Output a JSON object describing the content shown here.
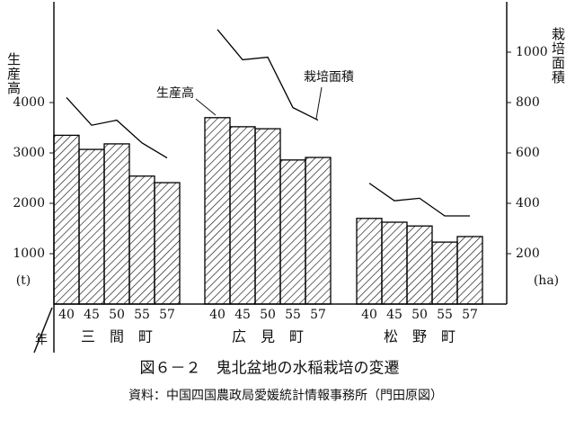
{
  "chart_data": {
    "type": "bar",
    "title": "図６－２　鬼北盆地の水稲栽培の変遷",
    "subtitle": "資料：中国四国農政局愛媛統計情報事務所（門田原図）",
    "ylabel": "生産高",
    "yunit": "(t)",
    "y2label": "栽培面積",
    "y2unit": "(ha)",
    "xlabel": "年",
    "ylim": [
      0,
      6000
    ],
    "yticks": [
      1000,
      2000,
      3000,
      4000
    ],
    "y2lim": [
      0,
      1200
    ],
    "y2ticks": [
      200,
      400,
      600,
      800,
      1000
    ],
    "series": [
      {
        "name": "生産高",
        "color": "#000000"
      },
      {
        "name": "栽培面積",
        "axis": "y2",
        "type": "line",
        "color": "#000000"
      }
    ],
    "groups": [
      {
        "name": "三　間　町",
        "categories": [
          "40",
          "45",
          "50",
          "55",
          "57"
        ],
        "series": [
          {
            "values": [
              3350,
              3070,
              3180,
              2540,
              2410
            ]
          },
          {
            "values": [
              820,
              710,
              730,
              640,
              580
            ]
          }
        ]
      },
      {
        "name": "広　見　町",
        "categories": [
          "40",
          "45",
          "50",
          "55",
          "57"
        ],
        "series": [
          {
            "values": [
              3700,
              3520,
              3480,
              2860,
              2910
            ]
          },
          {
            "values": [
              1090,
              970,
              980,
              780,
              730
            ]
          }
        ]
      },
      {
        "name": "松　野　町",
        "categories": [
          "40",
          "45",
          "50",
          "55",
          "57"
        ],
        "series": [
          {
            "values": [
              1700,
              1625,
              1550,
              1230,
              1340
            ]
          },
          {
            "values": [
              480,
              410,
              420,
              350,
              350
            ]
          }
        ]
      }
    ]
  }
}
